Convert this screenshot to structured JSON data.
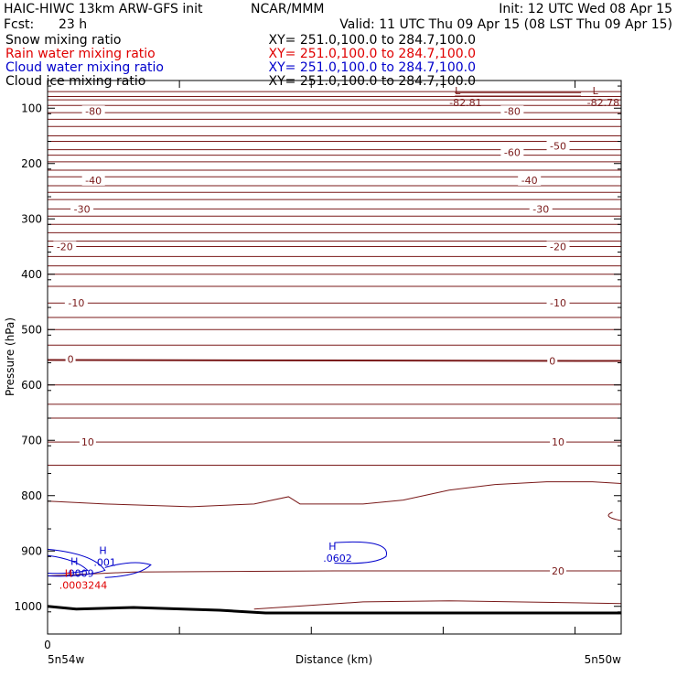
{
  "header": {
    "model": "HAIC-HIWC 13km ARW-GFS init",
    "center": "NCAR/MMM",
    "init": "Init: 12 UTC Wed 08 Apr 15",
    "fcst_label": "Fcst:",
    "fcst_value": "23 h",
    "valid": "Valid: 11 UTC Thu 09 Apr 15 (08 LST Thu 09 Apr 15)"
  },
  "fields": [
    {
      "name": "Snow mixing ratio",
      "xy": "XY= 251.0,100.0 to 284.7,100.0",
      "color": "#000000"
    },
    {
      "name": "Rain water mixing ratio",
      "xy": "XY= 251.0,100.0 to 284.7,100.0",
      "color": "#e00000"
    },
    {
      "name": "Cloud water mixing ratio",
      "xy": "XY= 251.0,100.0 to 284.7,100.0",
      "color": "#0000cc"
    },
    {
      "name": "Cloud ice mixing ratio",
      "xy": "XY= 251.0,100.0 to 284.7,100.0",
      "color": "#000000"
    }
  ],
  "chart_data": {
    "type": "line",
    "xlabel": "Distance (km)",
    "ylabel": "Pressure (hPa)",
    "x_tick_labels": [
      "0"
    ],
    "x_end_labels": {
      "left": "5n54w",
      "right": "5n50w"
    },
    "y_ticks": [
      100,
      200,
      300,
      400,
      500,
      600,
      700,
      800,
      900,
      1000
    ],
    "ylim": [
      50,
      1050
    ],
    "y_scale": "linear-inverted",
    "contour_color": "#7a1a1a",
    "isotherm_labels": [
      {
        "text": "-80",
        "x": 0.08,
        "p": 105
      },
      {
        "text": "-80",
        "x": 0.81,
        "p": 105
      },
      {
        "text": "-60",
        "x": 0.81,
        "p": 180
      },
      {
        "text": "-50",
        "x": 0.89,
        "p": 168
      },
      {
        "text": "-40",
        "x": 0.08,
        "p": 230
      },
      {
        "text": "-40",
        "x": 0.84,
        "p": 230
      },
      {
        "text": "-30",
        "x": 0.06,
        "p": 282
      },
      {
        "text": "-30",
        "x": 0.86,
        "p": 282
      },
      {
        "text": "-20",
        "x": 0.03,
        "p": 350
      },
      {
        "text": "-20",
        "x": 0.89,
        "p": 350
      },
      {
        "text": "-10",
        "x": 0.05,
        "p": 452
      },
      {
        "text": "-10",
        "x": 0.89,
        "p": 452
      },
      {
        "text": "0",
        "x": 0.04,
        "p": 553
      },
      {
        "text": "0",
        "x": 0.88,
        "p": 557
      },
      {
        "text": "10",
        "x": 0.07,
        "p": 703
      },
      {
        "text": "10",
        "x": 0.89,
        "p": 703
      },
      {
        "text": "20",
        "x": 0.89,
        "p": 936
      }
    ],
    "extrema": [
      {
        "symbol": "L",
        "value": "-82.81",
        "x": 0.71,
        "p": 75,
        "color": "#7a1a1a"
      },
      {
        "symbol": "L",
        "value": "-82.78",
        "x": 0.95,
        "p": 75,
        "color": "#7a1a1a"
      },
      {
        "symbol": "H",
        "value": ".0602",
        "x": 0.49,
        "p": 898,
        "color": "#0000cc"
      },
      {
        "symbol": "H",
        "value": ".001",
        "x": 0.09,
        "p": 905,
        "color": "#0000cc"
      },
      {
        "symbol": "H",
        "value": ".0009",
        "x": 0.04,
        "p": 925,
        "color": "#0000cc"
      },
      {
        "symbol": "H",
        "value": ".0003244",
        "x": 0.03,
        "p": 947,
        "color": "#e00000"
      }
    ]
  }
}
